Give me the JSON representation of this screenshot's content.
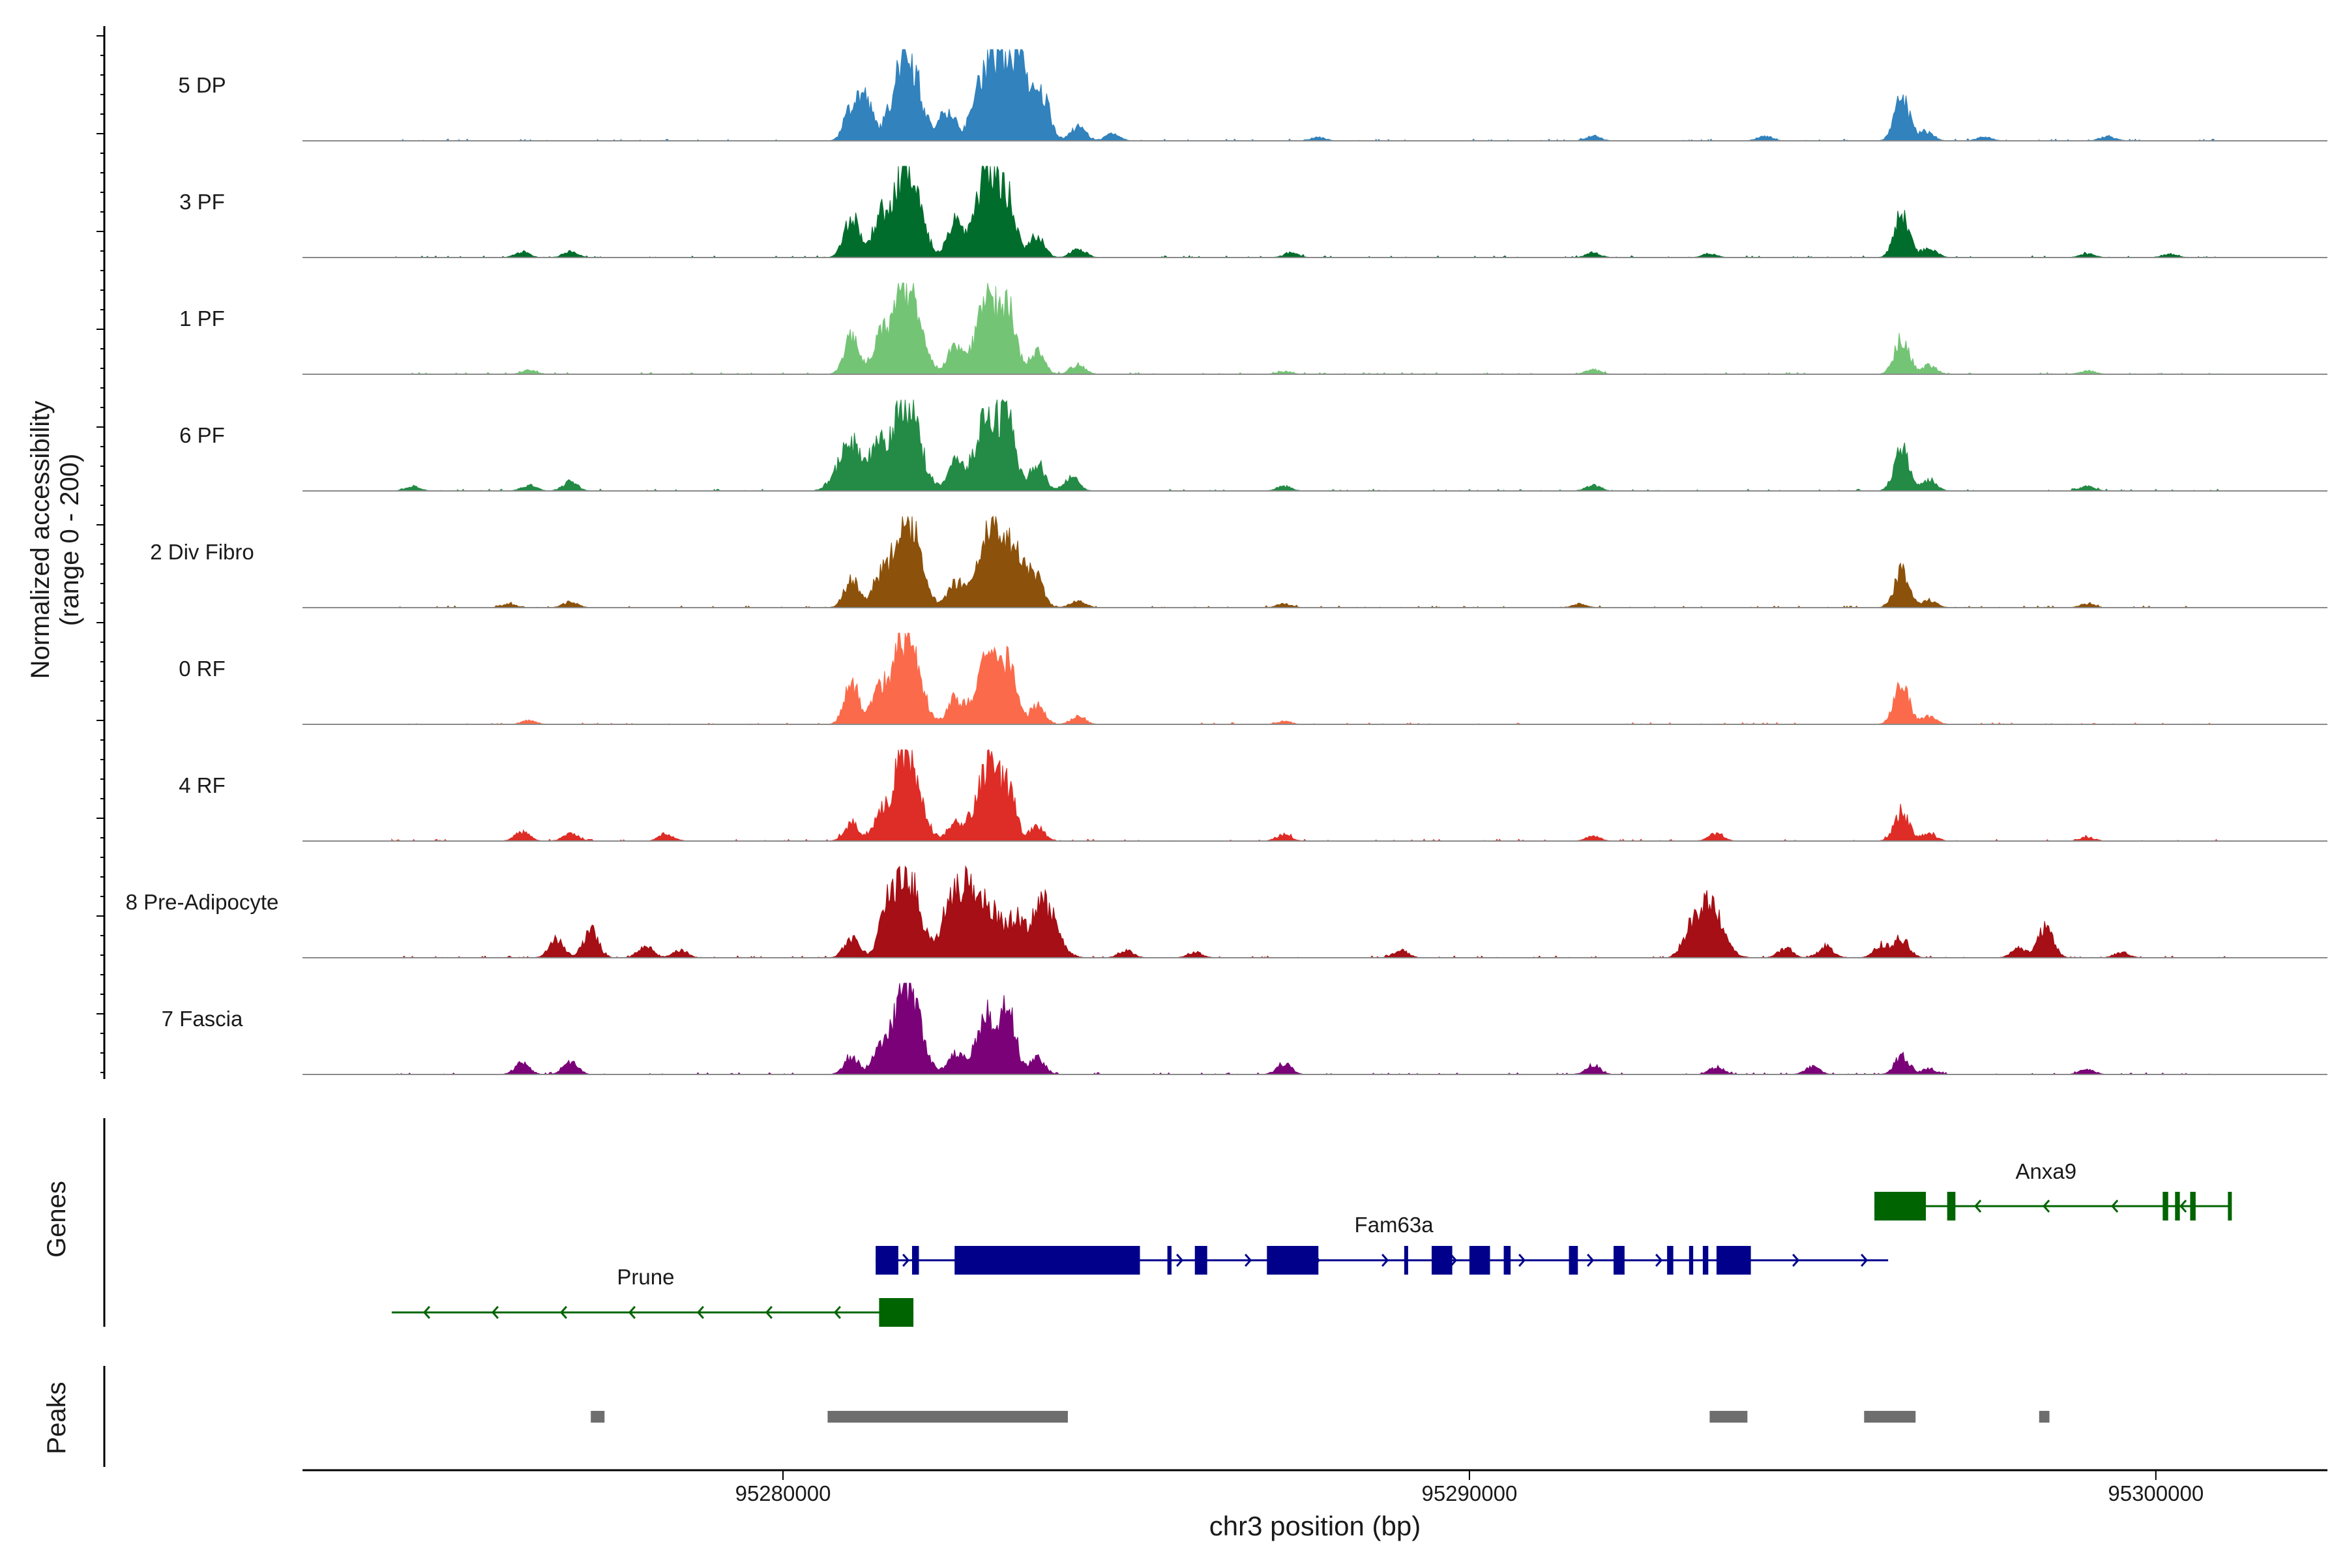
{
  "chart_data": {
    "type": "area",
    "title": "",
    "ylabel_line1": "Normalized accessibility",
    "ylabel_line2": "(range 0 - 200)",
    "ylim": [
      0,
      200
    ],
    "xlabel": "chr3 position (bp)",
    "xlim": [
      95273000,
      95302500
    ],
    "xticks": [
      {
        "value": 95280000,
        "label": "95280000"
      },
      {
        "value": 95290000,
        "label": "95290000"
      },
      {
        "value": 95300000,
        "label": "95300000"
      }
    ],
    "genes_label": "Genes",
    "peaks_label": "Peaks",
    "tracks": [
      {
        "name": "5 DP",
        "color": "#3182bd",
        "peaks": [
          [
            95281000,
            0.35
          ],
          [
            95281200,
            0.42
          ],
          [
            95281800,
            0.98
          ],
          [
            95282400,
            0.35
          ],
          [
            95283000,
            0.85
          ],
          [
            95283400,
            0.9
          ],
          [
            95283800,
            0.4
          ],
          [
            95284300,
            0.15
          ],
          [
            95284800,
            0.07
          ],
          [
            95287800,
            0.04
          ],
          [
            95291800,
            0.05
          ],
          [
            95294300,
            0.05
          ],
          [
            95296300,
            0.46
          ],
          [
            95296650,
            0.1
          ],
          [
            95297500,
            0.04
          ],
          [
            95299300,
            0.05
          ]
        ]
      },
      {
        "name": "3 PF",
        "color": "#006d2c",
        "peaks": [
          [
            95281000,
            0.45
          ],
          [
            95281400,
            0.38
          ],
          [
            95281800,
            1.0
          ],
          [
            95282500,
            0.38
          ],
          [
            95283000,
            1.0
          ],
          [
            95283300,
            0.4
          ],
          [
            95283700,
            0.22
          ],
          [
            95284300,
            0.1
          ],
          [
            95276200,
            0.06
          ],
          [
            95276900,
            0.06
          ],
          [
            95287400,
            0.05
          ],
          [
            95291800,
            0.05
          ],
          [
            95293500,
            0.04
          ],
          [
            95296300,
            0.47
          ],
          [
            95296700,
            0.1
          ],
          [
            95299000,
            0.04
          ],
          [
            95300200,
            0.04
          ]
        ]
      },
      {
        "name": "1 PF",
        "color": "#74c476",
        "peaks": [
          [
            95281000,
            0.42
          ],
          [
            95281400,
            0.35
          ],
          [
            95281800,
            0.98
          ],
          [
            95282500,
            0.28
          ],
          [
            95283000,
            0.82
          ],
          [
            95283300,
            0.5
          ],
          [
            95283700,
            0.25
          ],
          [
            95284300,
            0.1
          ],
          [
            95276300,
            0.04
          ],
          [
            95287300,
            0.03
          ],
          [
            95291800,
            0.05
          ],
          [
            95296300,
            0.38
          ],
          [
            95296700,
            0.1
          ],
          [
            95299000,
            0.04
          ]
        ]
      },
      {
        "name": "6 PF",
        "color": "#238b45",
        "peaks": [
          [
            95281000,
            0.52
          ],
          [
            95281400,
            0.42
          ],
          [
            95281800,
            1.0
          ],
          [
            95282500,
            0.3
          ],
          [
            95283000,
            0.88
          ],
          [
            95283300,
            0.5
          ],
          [
            95283700,
            0.3
          ],
          [
            95284200,
            0.15
          ],
          [
            95276900,
            0.1
          ],
          [
            95276300,
            0.06
          ],
          [
            95274600,
            0.05
          ],
          [
            95287300,
            0.05
          ],
          [
            95291800,
            0.06
          ],
          [
            95296300,
            0.48
          ],
          [
            95296700,
            0.12
          ],
          [
            95299000,
            0.05
          ]
        ]
      },
      {
        "name": "2 Div Fibro",
        "color": "#8c510a",
        "peaks": [
          [
            95281000,
            0.3
          ],
          [
            95281400,
            0.28
          ],
          [
            95281800,
            1.0
          ],
          [
            95282500,
            0.25
          ],
          [
            95283000,
            0.9
          ],
          [
            95283400,
            0.55
          ],
          [
            95283700,
            0.2
          ],
          [
            95284300,
            0.08
          ],
          [
            95276900,
            0.06
          ],
          [
            95276000,
            0.04
          ],
          [
            95287300,
            0.04
          ],
          [
            95291600,
            0.04
          ],
          [
            95296300,
            0.4
          ],
          [
            95296700,
            0.08
          ],
          [
            95299000,
            0.04
          ]
        ]
      },
      {
        "name": "0 RF",
        "color": "#fb6a4a",
        "peaks": [
          [
            95281000,
            0.45
          ],
          [
            95281400,
            0.35
          ],
          [
            95281800,
            1.0
          ],
          [
            95282500,
            0.25
          ],
          [
            95283000,
            0.7
          ],
          [
            95283300,
            0.45
          ],
          [
            95283700,
            0.2
          ],
          [
            95284300,
            0.08
          ],
          [
            95276300,
            0.04
          ],
          [
            95287300,
            0.03
          ],
          [
            95296300,
            0.45
          ],
          [
            95296700,
            0.08
          ]
        ]
      },
      {
        "name": "4 RF",
        "color": "#de2d26",
        "peaks": [
          [
            95281000,
            0.2
          ],
          [
            95281400,
            0.22
          ],
          [
            95281800,
            1.0
          ],
          [
            95282500,
            0.18
          ],
          [
            95283000,
            0.82
          ],
          [
            95283300,
            0.35
          ],
          [
            95283700,
            0.15
          ],
          [
            95276200,
            0.1
          ],
          [
            95276900,
            0.08
          ],
          [
            95278300,
            0.08
          ],
          [
            95287300,
            0.07
          ],
          [
            95291800,
            0.05
          ],
          [
            95293600,
            0.08
          ],
          [
            95296300,
            0.32
          ],
          [
            95296700,
            0.08
          ],
          [
            95299000,
            0.04
          ]
        ]
      },
      {
        "name": "8 Pre-Adipocyte",
        "color": "#a50f15",
        "peaks": [
          [
            95281000,
            0.22
          ],
          [
            95281500,
            0.35
          ],
          [
            95281800,
            0.95
          ],
          [
            95282400,
            0.2
          ],
          [
            95282600,
            0.75
          ],
          [
            95283000,
            0.55
          ],
          [
            95283400,
            0.35
          ],
          [
            95283800,
            0.58
          ],
          [
            95277200,
            0.3
          ],
          [
            95276700,
            0.2
          ],
          [
            95278000,
            0.14
          ],
          [
            95278500,
            0.08
          ],
          [
            95285000,
            0.08
          ],
          [
            95286000,
            0.06
          ],
          [
            95289000,
            0.08
          ],
          [
            95293200,
            0.2
          ],
          [
            95293500,
            0.58
          ],
          [
            95294600,
            0.1
          ],
          [
            95295200,
            0.12
          ],
          [
            95296000,
            0.14
          ],
          [
            95296300,
            0.2
          ],
          [
            95298000,
            0.1
          ],
          [
            95298400,
            0.35
          ],
          [
            95299500,
            0.06
          ]
        ]
      },
      {
        "name": "7 Fascia",
        "color": "#7a0177",
        "peaks": [
          [
            95281000,
            0.2
          ],
          [
            95281400,
            0.22
          ],
          [
            95281800,
            1.0
          ],
          [
            95282500,
            0.2
          ],
          [
            95283000,
            0.65
          ],
          [
            95283300,
            0.5
          ],
          [
            95283700,
            0.2
          ],
          [
            95276200,
            0.12
          ],
          [
            95276900,
            0.14
          ],
          [
            95287300,
            0.12
          ],
          [
            95291800,
            0.1
          ],
          [
            95293600,
            0.08
          ],
          [
            95295000,
            0.08
          ],
          [
            95296300,
            0.2
          ],
          [
            95296700,
            0.06
          ],
          [
            95299000,
            0.06
          ]
        ]
      }
    ],
    "genes": [
      {
        "name": "Anxa9",
        "strand": "-",
        "color": "#006400",
        "row": 0,
        "start": 95295900,
        "end": 95301100,
        "exons": [
          [
            95295900,
            95296650
          ],
          [
            95296960,
            95297080
          ],
          [
            95300100,
            95300180
          ],
          [
            95300280,
            95300350
          ],
          [
            95300500,
            95300580
          ],
          [
            95301050,
            95301100
          ]
        ]
      },
      {
        "name": "Fam63a",
        "strand": "+",
        "color": "#00008b",
        "row": 1,
        "start": 95281350,
        "end": 95296100,
        "exons": [
          [
            95281350,
            95281680
          ],
          [
            95281880,
            95281980
          ],
          [
            95282500,
            95285200
          ],
          [
            95285600,
            95285660
          ],
          [
            95286000,
            95286180
          ],
          [
            95287050,
            95287800
          ],
          [
            95289050,
            95289090
          ],
          [
            95289450,
            95289750
          ],
          [
            95290000,
            95290300
          ],
          [
            95290500,
            95290600
          ],
          [
            95291450,
            95291580
          ],
          [
            95292100,
            95292260
          ],
          [
            95292880,
            95292970
          ],
          [
            95293200,
            95293260
          ],
          [
            95293400,
            95293480
          ],
          [
            95293600,
            95294100
          ]
        ]
      },
      {
        "name": "Prune",
        "strand": "-",
        "color": "#006400",
        "row": 2,
        "start": 95274300,
        "end": 95281900,
        "exons": [
          [
            95281400,
            95281900
          ]
        ]
      }
    ],
    "peak_regions": [
      [
        95277200,
        95277400
      ],
      [
        95280650,
        95284150
      ],
      [
        95293500,
        95294050
      ],
      [
        95295750,
        95296500
      ],
      [
        95298300,
        95298450
      ]
    ]
  }
}
